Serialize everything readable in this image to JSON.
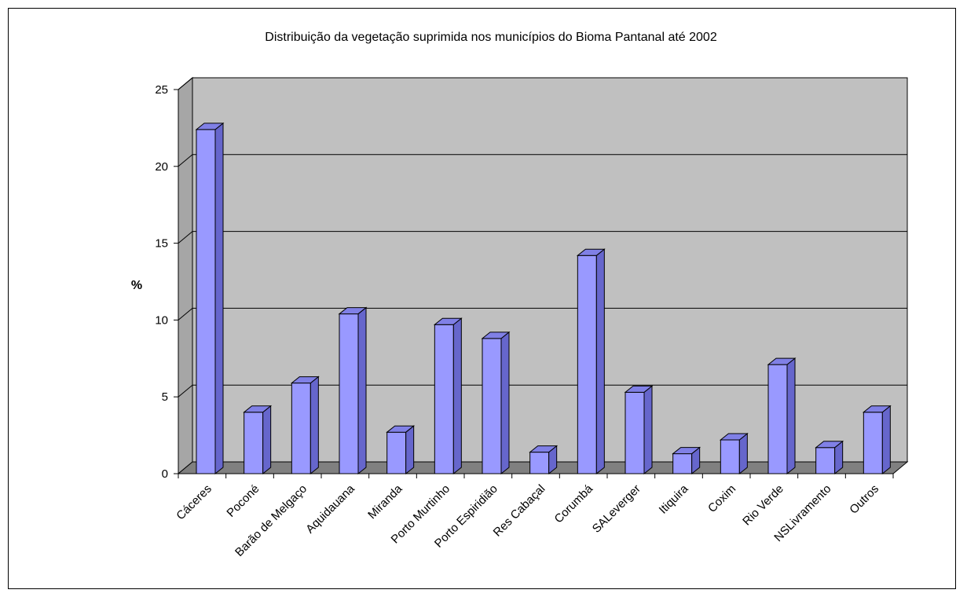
{
  "chart_data": {
    "type": "bar",
    "title": "Distribuição da vegetação suprimida nos municípios do Bioma Pantanal até 2002",
    "xlabel": "",
    "ylabel": "%",
    "ylim": [
      0,
      25
    ],
    "yticks": [
      0,
      5,
      10,
      15,
      20,
      25
    ],
    "grid": true,
    "legend": "none",
    "categories": [
      "Cáceres",
      "Poconé",
      "Barão de Melgaço",
      "Aquidauana",
      "Miranda",
      "Porto Murtinho",
      "Porto Espiridião",
      "Res Cabaçal",
      "Corumbá",
      "SALeverger",
      "Itiquira",
      "Coxim",
      "Rio Verde",
      "NSLivramento",
      "Outros"
    ],
    "values": [
      22.4,
      4.0,
      5.9,
      10.4,
      2.7,
      9.7,
      8.8,
      1.4,
      14.2,
      5.3,
      1.3,
      2.2,
      7.1,
      1.7,
      4.0
    ],
    "colors": {
      "bar_front": "#9999ff",
      "bar_side": "#6666cc",
      "bar_top": "#8080e6",
      "plot_back": "#c0c0c0",
      "floor": "#808080",
      "side_wall": "#a6a6a6"
    }
  }
}
